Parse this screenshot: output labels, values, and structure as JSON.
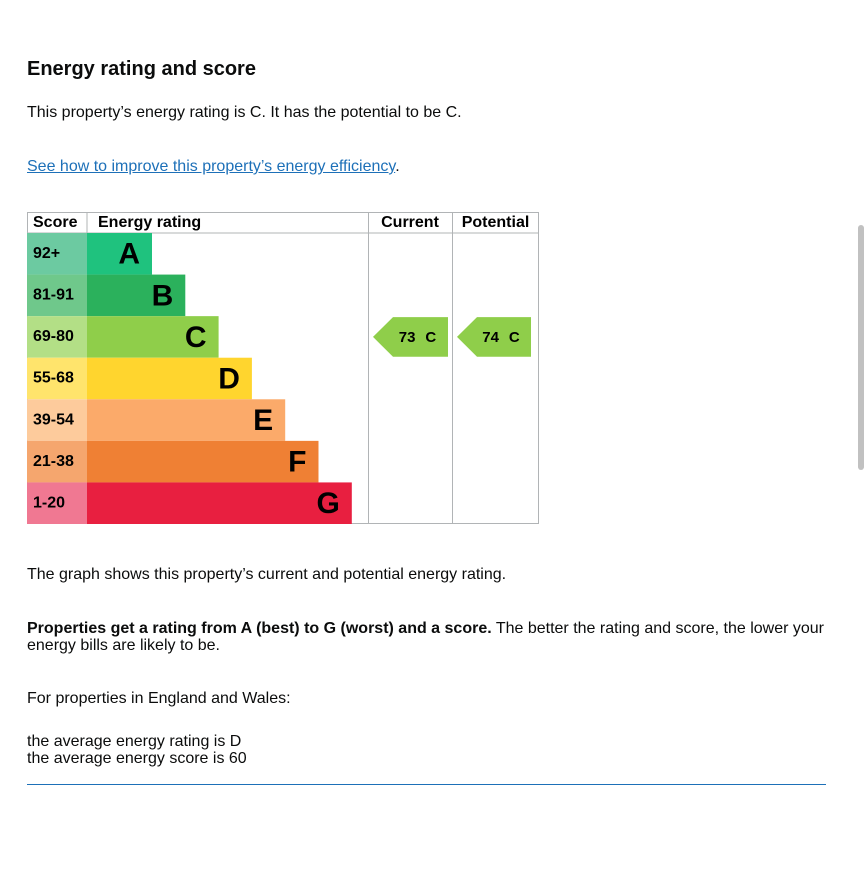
{
  "heading": "Energy rating and score",
  "intro": "This property’s energy rating is C. It has the potential to be C.",
  "link": {
    "text": "See how to improve this property’s energy efficiency",
    "suffix": "."
  },
  "graph": {
    "headers": {
      "score": "Score",
      "rating": "Energy rating",
      "current": "Current",
      "potential": "Potential"
    },
    "bands": [
      {
        "range": "92+",
        "letter": "A",
        "color": "#1fc27e",
        "score_color": "#6ccaa1"
      },
      {
        "range": "81-91",
        "letter": "B",
        "color": "#2bb15c",
        "score_color": "#6fc88b"
      },
      {
        "range": "69-80",
        "letter": "C",
        "color": "#8fce4a",
        "score_color": "#b3df86"
      },
      {
        "range": "55-68",
        "letter": "D",
        "color": "#ffd52e",
        "score_color": "#ffe46c"
      },
      {
        "range": "39-54",
        "letter": "E",
        "color": "#fbaa6a",
        "score_color": "#fdcb9c"
      },
      {
        "range": "21-38",
        "letter": "F",
        "color": "#ef8034",
        "score_color": "#f5a66e"
      },
      {
        "range": "1-20",
        "letter": "G",
        "color": "#e81f40",
        "score_color": "#f07892"
      }
    ],
    "current": {
      "score": 73,
      "band": "C",
      "color": "#8fce4a"
    },
    "potential": {
      "score": 74,
      "band": "C",
      "color": "#8fce4a"
    }
  },
  "caption": "The graph shows this property’s current and potential energy rating.",
  "explain": {
    "bold": "Properties get a rating from A (best) to G (worst) and a score.",
    "rest": " The better the rating and score, the lower your energy bills are likely to be."
  },
  "region": "For properties in England and Wales:",
  "averages": [
    "the average energy rating is D",
    "the average energy score is 60"
  ]
}
